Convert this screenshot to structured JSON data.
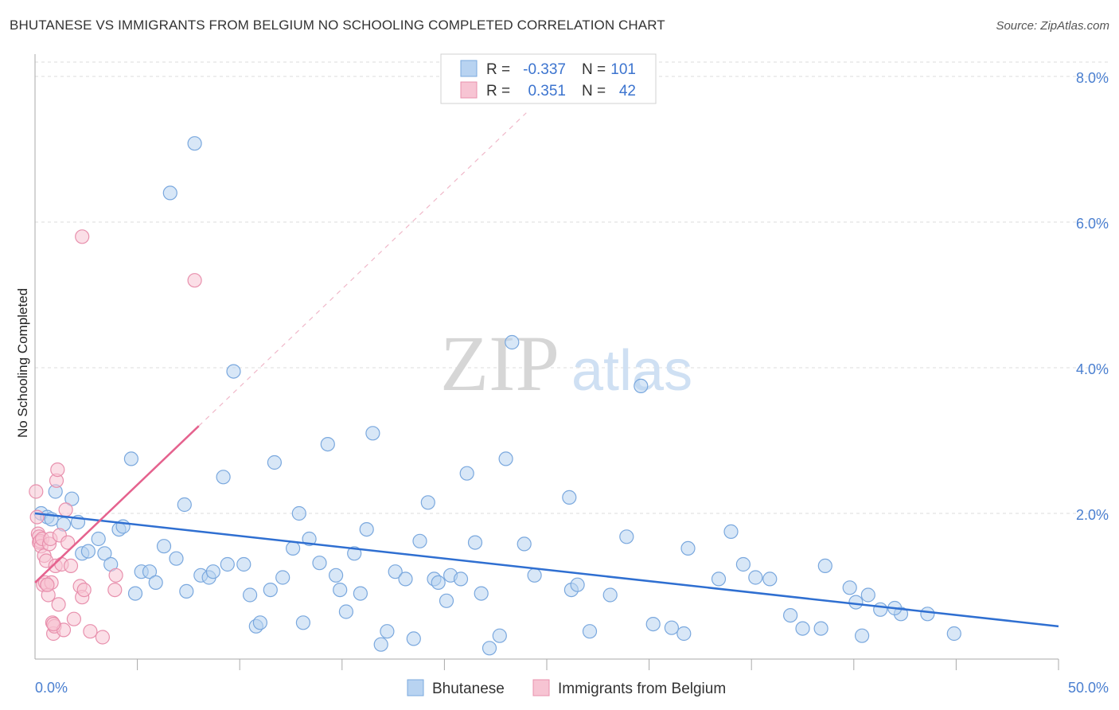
{
  "title": "BHUTANESE VS IMMIGRANTS FROM BELGIUM NO SCHOOLING COMPLETED CORRELATION CHART",
  "source": "Source: ZipAtlas.com",
  "watermark": {
    "zip": "ZIP",
    "atlas": "atlas"
  },
  "colors": {
    "blue_fill": "#b8d3f1",
    "blue_stroke": "#7aa8de",
    "blue_line": "#2f6fd1",
    "pink_fill": "#f7c4d3",
    "pink_stroke": "#e890ad",
    "pink_line": "#e5628e",
    "grid": "#dcdcdc",
    "tick_text": "#4a7fd0"
  },
  "stats_box": {
    "rows": [
      {
        "r_label": "R =",
        "r_value": "-0.337",
        "n_label": "N =",
        "n_value": "101"
      },
      {
        "r_label": "R =",
        "r_value": "0.351",
        "n_label": "N =",
        "n_value": "42"
      }
    ]
  },
  "chart_data": {
    "type": "scatter",
    "title": "BHUTANESE VS IMMIGRANTS FROM BELGIUM NO SCHOOLING COMPLETED CORRELATION CHART",
    "xlabel": "",
    "ylabel": "No Schooling Completed",
    "xlim": [
      0,
      50
    ],
    "ylim": [
      0,
      8.2
    ],
    "x_tick_labels": [
      {
        "value": 0,
        "label": "0.0%"
      },
      {
        "value": 50,
        "label": "50.0%"
      }
    ],
    "y_tick_labels": [
      {
        "value": 2,
        "label": "2.0%"
      },
      {
        "value": 4,
        "label": "4.0%"
      },
      {
        "value": 6,
        "label": "6.0%"
      },
      {
        "value": 8,
        "label": "8.0%"
      }
    ],
    "x_minor_ticks": [
      5,
      10,
      15,
      20,
      25,
      30,
      35,
      40,
      45,
      50
    ],
    "grid": true,
    "legend": [
      "Bhutanese",
      "Immigrants from Belgium"
    ],
    "series": [
      {
        "name": "Bhutanese",
        "color": "#7aa8de",
        "r": -0.337,
        "n": 101,
        "trend": {
          "x": [
            0,
            50
          ],
          "y": [
            2.0,
            0.45
          ]
        },
        "points": [
          [
            0.3,
            2.0
          ],
          [
            0.6,
            1.95
          ],
          [
            0.8,
            1.92
          ],
          [
            1.0,
            2.3
          ],
          [
            1.4,
            1.85
          ],
          [
            1.8,
            2.2
          ],
          [
            2.1,
            1.88
          ],
          [
            2.3,
            1.45
          ],
          [
            2.6,
            1.48
          ],
          [
            3.1,
            1.65
          ],
          [
            3.4,
            1.45
          ],
          [
            3.7,
            1.3
          ],
          [
            4.1,
            1.78
          ],
          [
            4.3,
            1.82
          ],
          [
            4.7,
            2.75
          ],
          [
            4.9,
            0.9
          ],
          [
            5.2,
            1.2
          ],
          [
            5.6,
            1.2
          ],
          [
            5.9,
            1.05
          ],
          [
            6.3,
            1.55
          ],
          [
            6.6,
            6.4
          ],
          [
            6.9,
            1.38
          ],
          [
            7.3,
            2.12
          ],
          [
            7.4,
            0.93
          ],
          [
            7.8,
            7.08
          ],
          [
            8.1,
            1.15
          ],
          [
            8.5,
            1.12
          ],
          [
            8.7,
            1.2
          ],
          [
            9.2,
            2.5
          ],
          [
            9.4,
            1.3
          ],
          [
            9.7,
            3.95
          ],
          [
            10.2,
            1.3
          ],
          [
            10.5,
            0.88
          ],
          [
            10.8,
            0.45
          ],
          [
            11.0,
            0.5
          ],
          [
            11.5,
            0.95
          ],
          [
            11.7,
            2.7
          ],
          [
            12.1,
            1.12
          ],
          [
            12.6,
            1.52
          ],
          [
            12.9,
            2.0
          ],
          [
            13.1,
            0.5
          ],
          [
            13.4,
            1.65
          ],
          [
            13.9,
            1.32
          ],
          [
            14.3,
            2.95
          ],
          [
            14.7,
            1.15
          ],
          [
            14.9,
            0.95
          ],
          [
            15.2,
            0.65
          ],
          [
            15.6,
            1.45
          ],
          [
            15.9,
            0.9
          ],
          [
            16.2,
            1.78
          ],
          [
            16.5,
            3.1
          ],
          [
            16.9,
            0.2
          ],
          [
            17.2,
            0.38
          ],
          [
            17.6,
            1.2
          ],
          [
            18.1,
            1.1
          ],
          [
            18.5,
            0.28
          ],
          [
            18.8,
            1.62
          ],
          [
            19.2,
            2.15
          ],
          [
            19.5,
            1.1
          ],
          [
            19.7,
            1.05
          ],
          [
            20.1,
            0.8
          ],
          [
            20.3,
            1.15
          ],
          [
            20.8,
            1.1
          ],
          [
            21.1,
            2.55
          ],
          [
            21.5,
            1.6
          ],
          [
            21.8,
            0.9
          ],
          [
            22.2,
            0.15
          ],
          [
            22.7,
            0.32
          ],
          [
            23.0,
            2.75
          ],
          [
            23.3,
            4.35
          ],
          [
            23.9,
            1.58
          ],
          [
            24.4,
            1.15
          ],
          [
            26.1,
            2.22
          ],
          [
            26.2,
            0.95
          ],
          [
            26.5,
            1.02
          ],
          [
            27.1,
            0.38
          ],
          [
            28.1,
            0.88
          ],
          [
            28.9,
            1.68
          ],
          [
            29.6,
            3.75
          ],
          [
            30.2,
            0.48
          ],
          [
            31.1,
            0.43
          ],
          [
            31.7,
            0.35
          ],
          [
            31.9,
            1.52
          ],
          [
            33.4,
            1.1
          ],
          [
            34.0,
            1.75
          ],
          [
            34.6,
            1.3
          ],
          [
            35.2,
            1.12
          ],
          [
            35.9,
            1.1
          ],
          [
            36.9,
            0.6
          ],
          [
            37.5,
            0.42
          ],
          [
            38.4,
            0.42
          ],
          [
            38.6,
            1.28
          ],
          [
            39.8,
            0.98
          ],
          [
            40.1,
            0.78
          ],
          [
            40.4,
            0.32
          ],
          [
            40.7,
            0.88
          ],
          [
            41.3,
            0.68
          ],
          [
            42.3,
            0.62
          ],
          [
            43.6,
            0.62
          ],
          [
            42.0,
            0.7
          ],
          [
            44.9,
            0.35
          ]
        ]
      },
      {
        "name": "Immigrants from Belgium",
        "color": "#e890ad",
        "r": 0.351,
        "n": 42,
        "trend": {
          "x": [
            0,
            8
          ],
          "y": [
            1.05,
            3.2
          ]
        },
        "trend_extended": {
          "x": [
            8,
            24
          ],
          "y": [
            3.2,
            7.5
          ]
        },
        "points": [
          [
            0.05,
            2.3
          ],
          [
            0.1,
            1.95
          ],
          [
            0.15,
            1.72
          ],
          [
            0.2,
            1.68
          ],
          [
            0.2,
            1.6
          ],
          [
            0.25,
            1.62
          ],
          [
            0.3,
            1.55
          ],
          [
            0.35,
            1.65
          ],
          [
            0.4,
            1.02
          ],
          [
            0.45,
            1.42
          ],
          [
            0.5,
            1.05
          ],
          [
            0.55,
            1.35
          ],
          [
            0.6,
            1.02
          ],
          [
            0.65,
            0.88
          ],
          [
            0.7,
            1.58
          ],
          [
            0.75,
            1.65
          ],
          [
            0.8,
            1.05
          ],
          [
            0.85,
            0.5
          ],
          [
            0.9,
            0.35
          ],
          [
            0.95,
            0.45
          ],
          [
            1.0,
            1.28
          ],
          [
            1.05,
            2.45
          ],
          [
            1.1,
            2.6
          ],
          [
            1.15,
            0.75
          ],
          [
            1.2,
            1.7
          ],
          [
            1.3,
            1.3
          ],
          [
            1.4,
            0.4
          ],
          [
            1.5,
            2.05
          ],
          [
            1.6,
            1.6
          ],
          [
            1.75,
            1.28
          ],
          [
            1.9,
            0.55
          ],
          [
            2.2,
            1.0
          ],
          [
            2.3,
            0.85
          ],
          [
            2.4,
            0.95
          ],
          [
            2.3,
            5.8
          ],
          [
            2.7,
            0.38
          ],
          [
            3.3,
            0.3
          ],
          [
            3.9,
            0.95
          ],
          [
            3.95,
            1.15
          ],
          [
            7.8,
            5.2
          ],
          [
            0.6,
            1.02
          ],
          [
            0.9,
            0.48
          ]
        ]
      }
    ]
  }
}
